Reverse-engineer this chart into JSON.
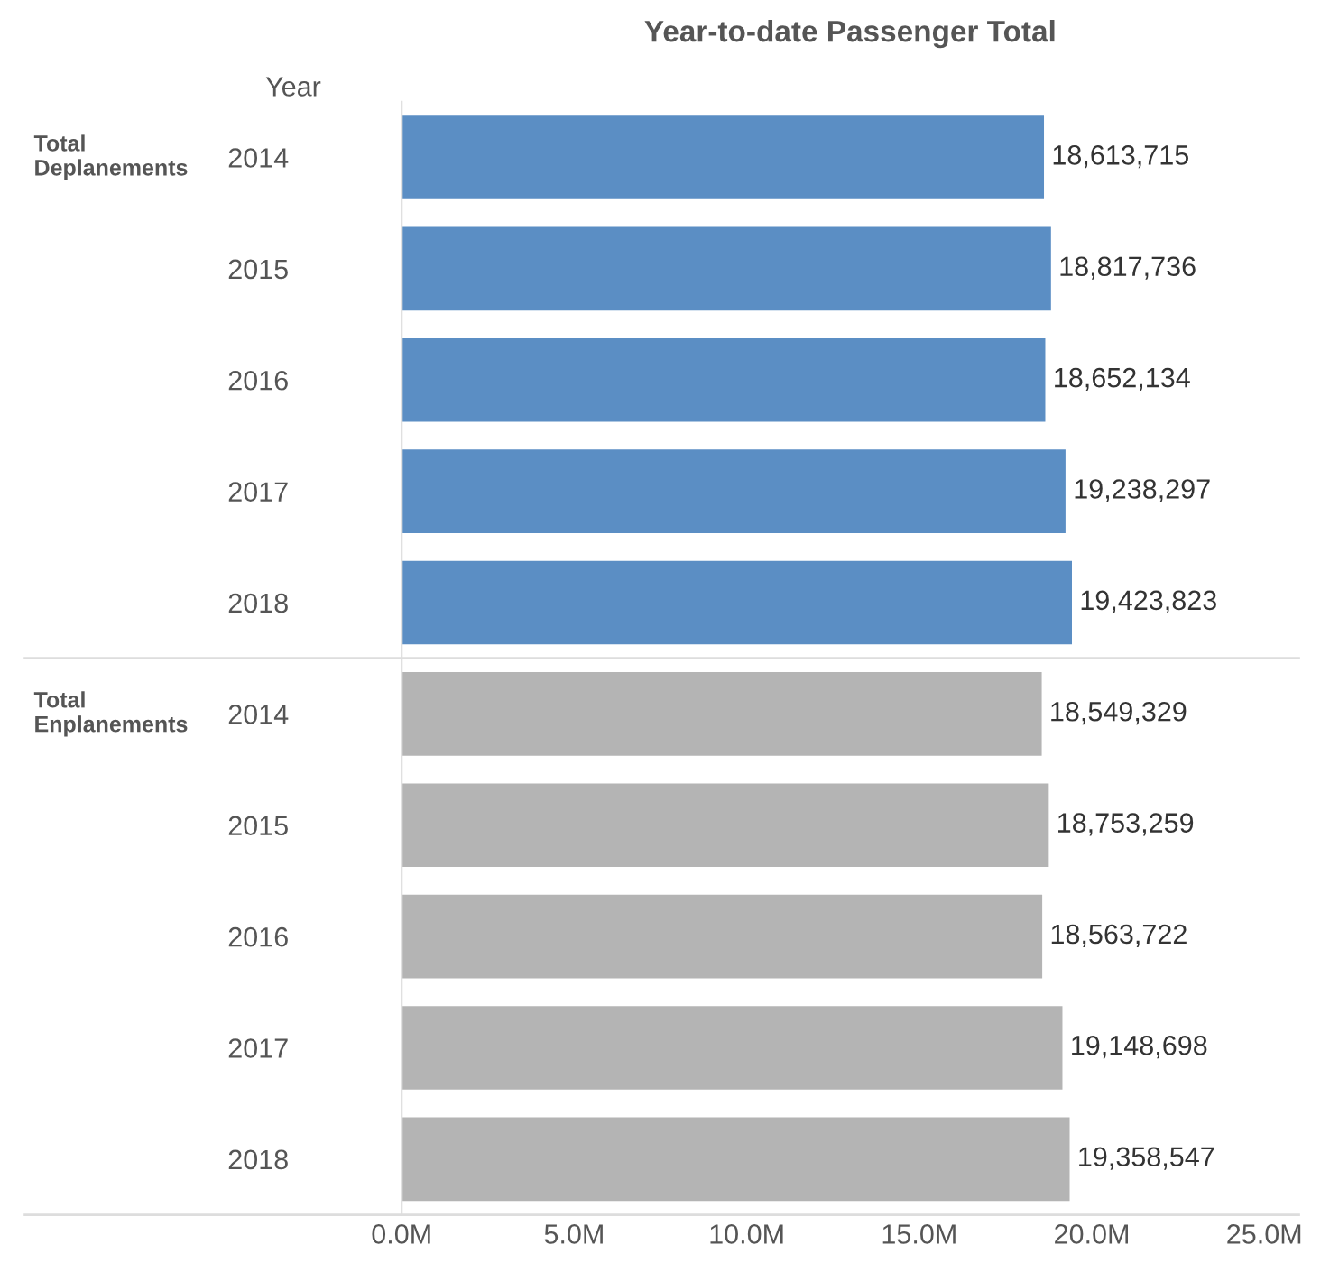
{
  "chart_data": {
    "type": "bar",
    "orientation": "horizontal",
    "title": "Year-to-date Passenger Total",
    "ylabel": "Year",
    "categories": [
      "2014",
      "2015",
      "2016",
      "2017",
      "2018",
      "2014",
      "2015",
      "2016",
      "2017",
      "2018"
    ],
    "values": [
      18613715,
      18817736,
      18652134,
      19238297,
      19423823,
      18549329,
      18753259,
      18563722,
      19148698,
      19358547
    ],
    "value_labels": [
      "18,613,715",
      "18,817,736",
      "18,652,134",
      "19,238,297",
      "19,423,823",
      "18,549,329",
      "18,753,259",
      "18,563,722",
      "19,148,698",
      "19,358,547"
    ],
    "colors": [
      "#5b8ec4",
      "#5b8ec4",
      "#5b8ec4",
      "#5b8ec4",
      "#5b8ec4",
      "#b4b4b4",
      "#b4b4b4",
      "#b4b4b4",
      "#b4b4b4",
      "#b4b4b4"
    ],
    "annotations": [
      "Total\nDeplanements",
      "Total\nEnplanements"
    ],
    "xlim": [
      0,
      26000000
    ],
    "xticks": [
      {
        "value": 0,
        "label": "0.0M"
      },
      {
        "value": 5000000,
        "label": "5.0M"
      },
      {
        "value": 10000000,
        "label": "10.0M"
      },
      {
        "value": 15000000,
        "label": "15.0M"
      },
      {
        "value": 20000000,
        "label": "20.0M"
      },
      {
        "value": 25000000,
        "label": "25.0M"
      }
    ],
    "grid": false,
    "legend": false
  }
}
